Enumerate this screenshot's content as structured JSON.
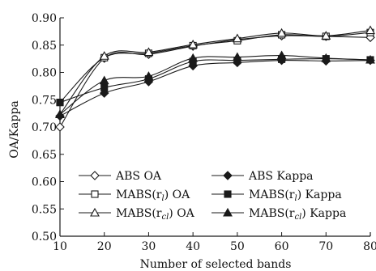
{
  "chart_data": {
    "type": "line",
    "xlabel": "Number of selected bands",
    "ylabel": "OA/Kappa",
    "x": [
      10,
      20,
      30,
      40,
      50,
      60,
      70,
      80
    ],
    "xlim": [
      10,
      80
    ],
    "ylim": [
      0.5,
      0.9
    ],
    "x_ticks": [
      "10",
      "20",
      "30",
      "40",
      "50",
      "60",
      "70",
      "80"
    ],
    "y_ticks": [
      "0.50",
      "0.55",
      "0.60",
      "0.65",
      "0.70",
      "0.75",
      "0.80",
      "0.85",
      "0.90"
    ],
    "grid": false,
    "legend_position": "bottom",
    "series": [
      {
        "name": "ABS OA",
        "marker": "diamond-open",
        "values": [
          0.7,
          0.826,
          0.833,
          0.848,
          0.86,
          0.867,
          0.866,
          0.864
        ]
      },
      {
        "name": "ABS Kappa",
        "marker": "diamond-filled",
        "values": [
          0.72,
          0.762,
          0.783,
          0.812,
          0.818,
          0.822,
          0.821,
          0.822
        ]
      },
      {
        "name": "MABS(rl) OA",
        "marker": "square-open",
        "values": [
          0.745,
          0.827,
          0.835,
          0.849,
          0.858,
          0.869,
          0.866,
          0.873
        ]
      },
      {
        "name": "MABS(rl) Kappa",
        "marker": "square-filled",
        "values": [
          0.745,
          0.772,
          0.788,
          0.82,
          0.822,
          0.824,
          0.825,
          0.823
        ]
      },
      {
        "name": "MABS(rcl) OA",
        "marker": "triangle-open",
        "values": [
          0.723,
          0.83,
          0.837,
          0.851,
          0.862,
          0.872,
          0.867,
          0.877
        ]
      },
      {
        "name": "MABS(rcl) Kappa",
        "marker": "triangle-filled",
        "values": [
          0.723,
          0.785,
          0.793,
          0.826,
          0.828,
          0.831,
          0.826,
          0.823
        ]
      }
    ],
    "legend": [
      {
        "pre": "ABS OA",
        "sub": "",
        "post": ""
      },
      {
        "pre": "ABS Kappa",
        "sub": "",
        "post": ""
      },
      {
        "pre": "MABS(r",
        "sub": "l",
        "post": ") OA"
      },
      {
        "pre": "MABS(r",
        "sub": "l",
        "post": ") Kappa"
      },
      {
        "pre": "MABS(r",
        "sub": "cl",
        "post": ") OA"
      },
      {
        "pre": "MABS(r",
        "sub": "cl",
        "post": ") Kappa"
      }
    ],
    "line_color": "#1a1a1a"
  }
}
